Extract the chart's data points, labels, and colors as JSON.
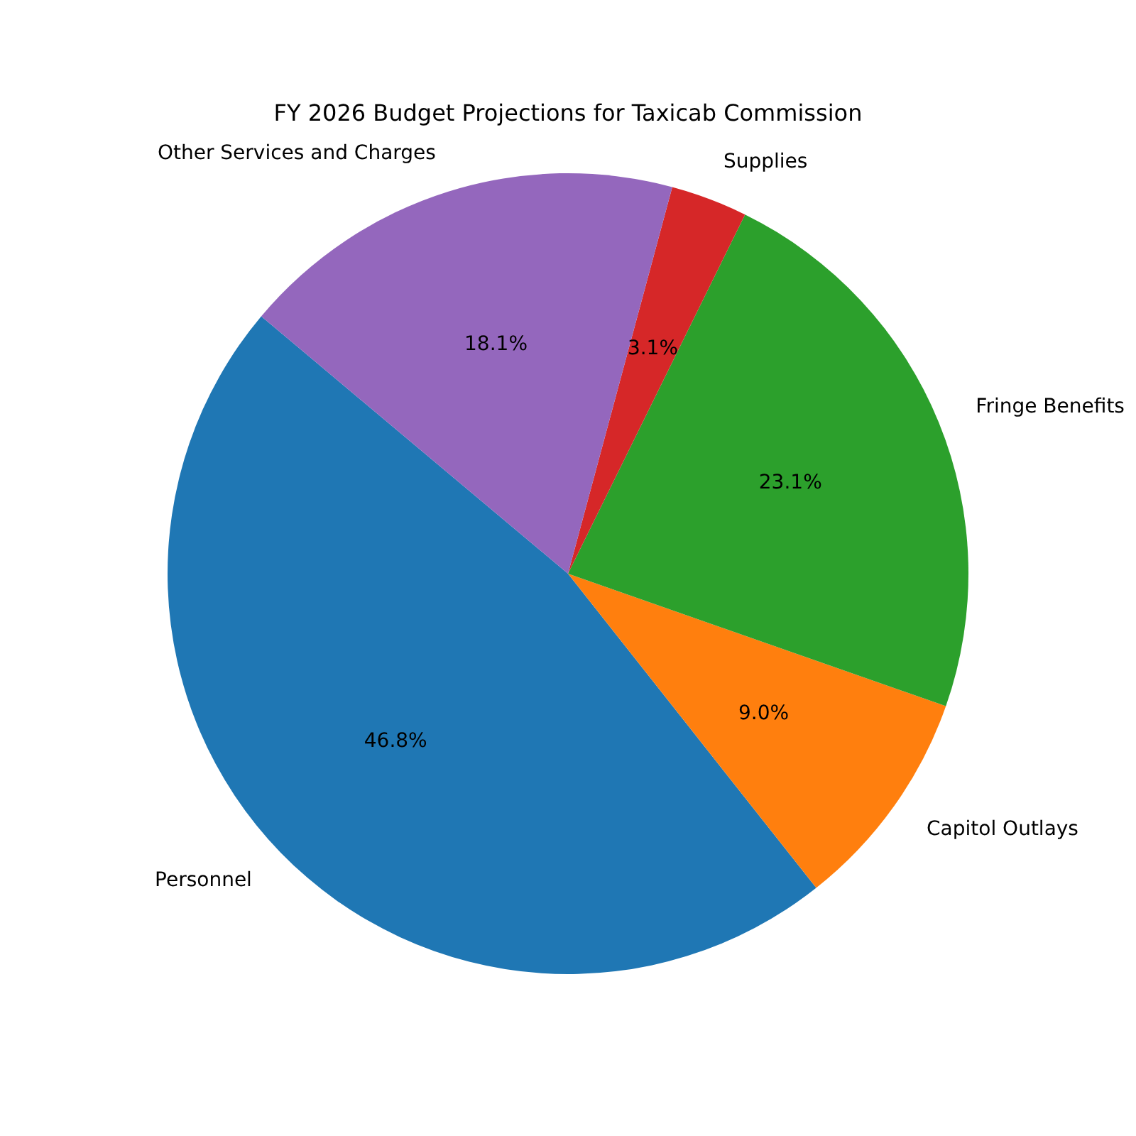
{
  "chart_data": {
    "type": "pie",
    "title": "FY 2026 Budget Projections for Taxicab Commission",
    "categories": [
      "Personnel",
      "Capitol Outlays",
      "Fringe Benefits",
      "Supplies",
      "Other Services and Charges"
    ],
    "values": [
      46.8,
      9.0,
      23.1,
      3.1,
      18.1
    ],
    "colors": [
      "#1f77b4",
      "#ff7f0e",
      "#2ca02c",
      "#d62728",
      "#9467bd"
    ],
    "value_labels": [
      "46.8%",
      "9.0%",
      "23.1%",
      "3.1%",
      "18.1%"
    ],
    "legend": false
  }
}
